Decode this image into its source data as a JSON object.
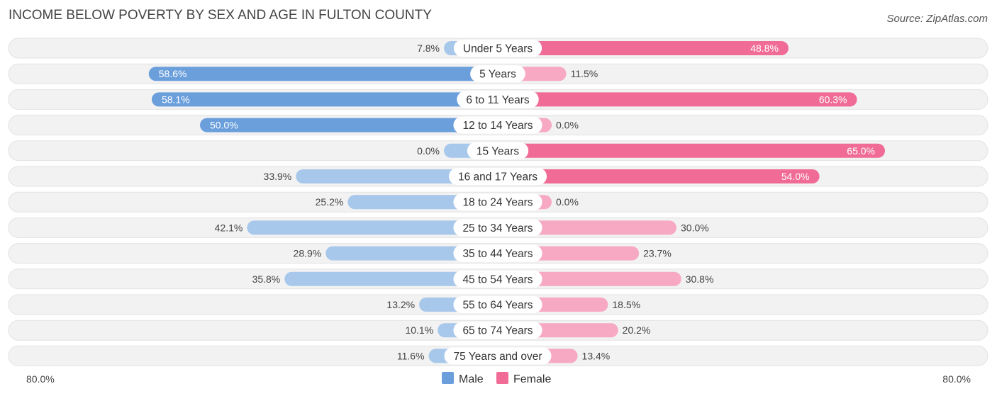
{
  "chart_data": {
    "type": "bar",
    "orientation": "horizontal-diverging",
    "title": "INCOME BELOW POVERTY BY SEX AND AGE IN FULTON COUNTY",
    "source": "Source: ZipAtlas.com",
    "categories": [
      "Under 5 Years",
      "5 Years",
      "6 to 11 Years",
      "12 to 14 Years",
      "15 Years",
      "16 and 17 Years",
      "18 to 24 Years",
      "25 to 34 Years",
      "35 to 44 Years",
      "45 to 54 Years",
      "55 to 64 Years",
      "65 to 74 Years",
      "75 Years and over"
    ],
    "series": [
      {
        "name": "Male",
        "color": "#6a9fdc",
        "light_color": "#a8c8eb",
        "values": [
          7.8,
          58.6,
          58.1,
          50.0,
          0.0,
          33.9,
          25.2,
          42.1,
          28.9,
          35.8,
          13.2,
          10.1,
          11.6
        ],
        "labels": [
          "7.8%",
          "58.6%",
          "58.1%",
          "50.0%",
          "0.0%",
          "33.9%",
          "25.2%",
          "42.1%",
          "28.9%",
          "35.8%",
          "13.2%",
          "10.1%",
          "11.6%"
        ]
      },
      {
        "name": "Female",
        "color": "#f06c96",
        "light_color": "#f7a8c2",
        "values": [
          48.8,
          11.5,
          60.3,
          0.0,
          65.0,
          54.0,
          0.0,
          30.0,
          23.7,
          30.8,
          18.5,
          20.2,
          13.4
        ],
        "labels": [
          "48.8%",
          "11.5%",
          "60.3%",
          "0.0%",
          "65.0%",
          "54.0%",
          "0.0%",
          "30.0%",
          "23.7%",
          "30.8%",
          "18.5%",
          "20.2%",
          "13.4%"
        ]
      }
    ],
    "xlim": [
      -80,
      80
    ],
    "axis_min_label": "80.0%",
    "axis_max_label": "80.0%",
    "legend": [
      "Male",
      "Female"
    ],
    "legend_position": "bottom-center"
  }
}
